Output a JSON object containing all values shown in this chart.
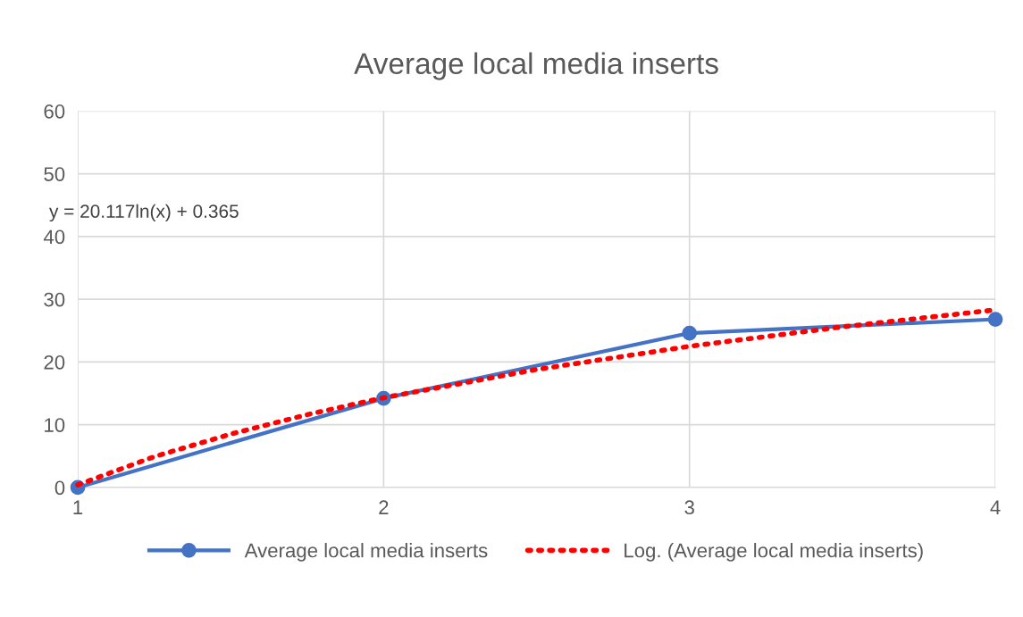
{
  "chart_data": {
    "type": "line",
    "title": "Average local media inserts",
    "series": [
      {
        "name": "Average local media inserts",
        "color": "#4472c4",
        "x": [
          1,
          2,
          3,
          4
        ],
        "values": [
          0,
          14.2,
          24.6,
          26.8
        ],
        "marker": "circle",
        "line_style": "solid"
      },
      {
        "name": "Log. (Average local media inserts)",
        "color": "#ff0000",
        "x": [
          1,
          1.25,
          1.5,
          1.75,
          2,
          2.5,
          3,
          3.5,
          4
        ],
        "values": [
          0.4,
          4.9,
          8.5,
          11.6,
          14.3,
          18.8,
          22.5,
          25.6,
          28.3
        ],
        "marker": "none",
        "line_style": "dotted"
      }
    ],
    "annotations": [
      "y = 20.117ln(x) + 0.365"
    ],
    "xlim": [
      1,
      4
    ],
    "xticks": [
      1,
      2,
      3,
      4
    ],
    "ylim": [
      0,
      60
    ],
    "yticks": [
      0,
      10,
      20,
      30,
      40,
      50,
      60
    ],
    "grid": true,
    "legend": "bottom"
  }
}
